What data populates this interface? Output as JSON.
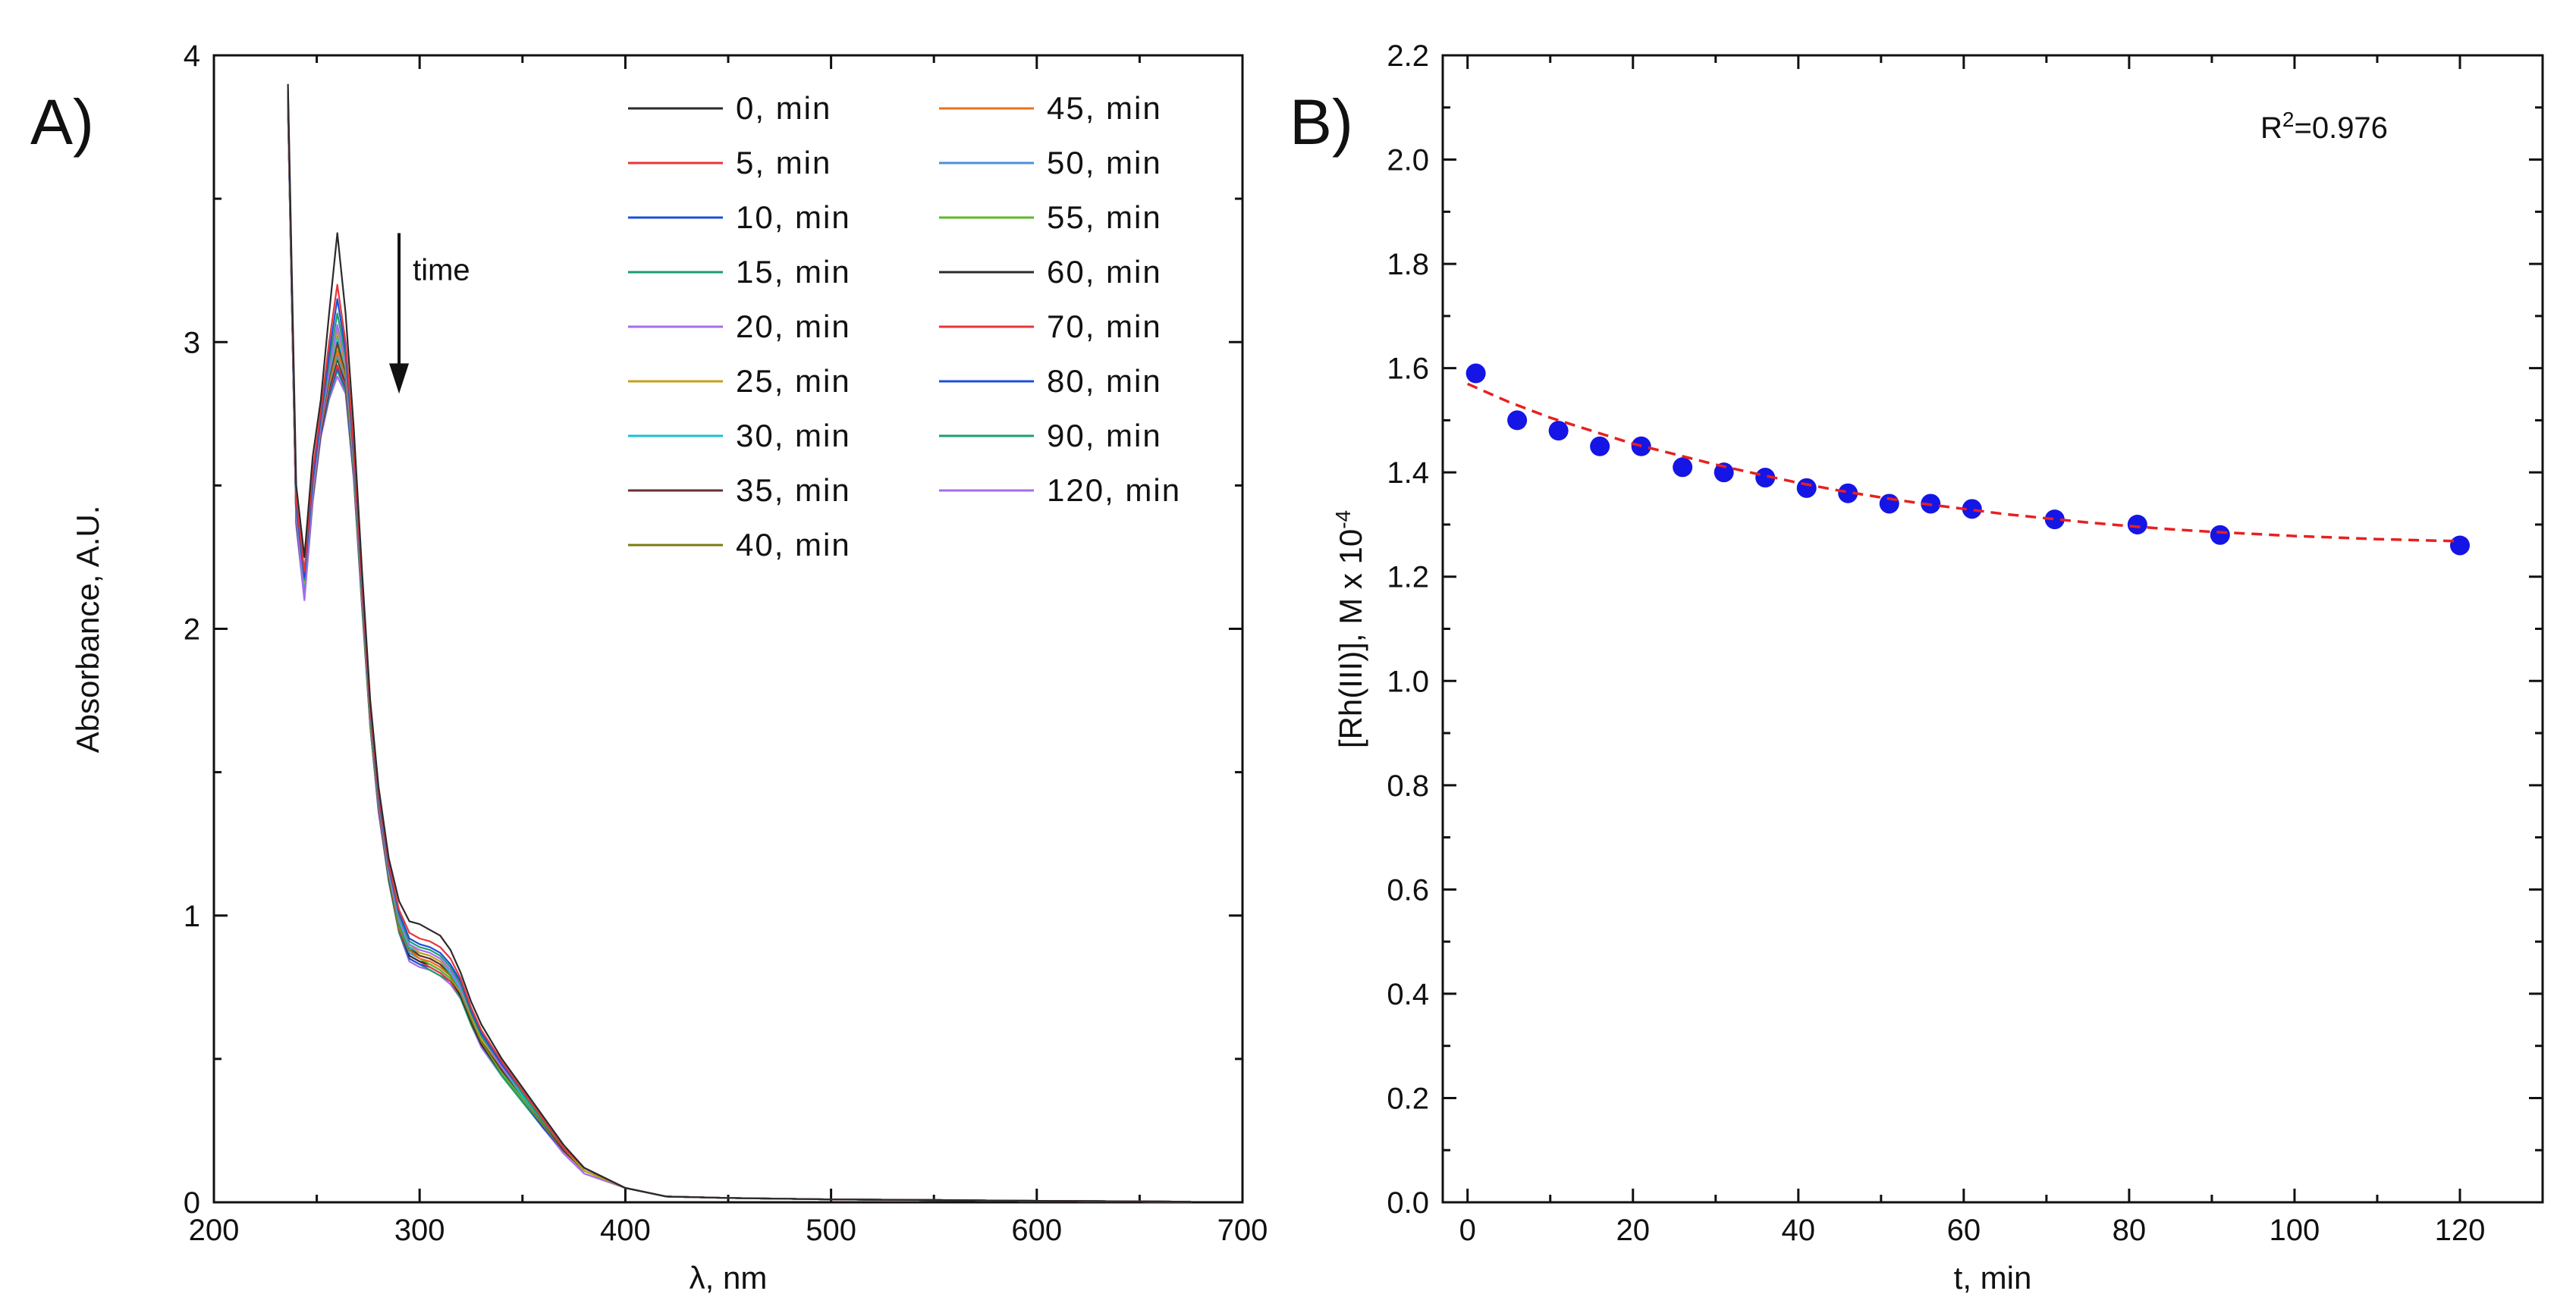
{
  "chart_data": [
    {
      "type": "line",
      "panel_label": "A)",
      "xlabel": "λ, nm",
      "ylabel": "Absorbance, A.U.",
      "xlim": [
        200,
        700
      ],
      "ylim": [
        0,
        4
      ],
      "x_ticks": [
        200,
        300,
        400,
        500,
        600,
        700
      ],
      "y_ticks": [
        0,
        1,
        2,
        3,
        4
      ],
      "annotation": "time",
      "arrow": {
        "x": 290,
        "y_from": 3.38,
        "y_to": 2.82
      },
      "grid": false,
      "legend_position": "top-right",
      "x": [
        236,
        240,
        244,
        248,
        252,
        256,
        260,
        264,
        268,
        272,
        276,
        280,
        285,
        290,
        295,
        300,
        305,
        310,
        315,
        320,
        325,
        330,
        340,
        350,
        360,
        370,
        380,
        400,
        420,
        450,
        500,
        550,
        600,
        650,
        675
      ],
      "series": [
        {
          "name": "0, min",
          "color": "#2b2b2b",
          "values": [
            3.9,
            2.5,
            2.25,
            2.6,
            2.8,
            3.1,
            3.38,
            3.1,
            2.7,
            2.2,
            1.75,
            1.45,
            1.2,
            1.05,
            0.98,
            0.97,
            0.95,
            0.93,
            0.88,
            0.8,
            0.7,
            0.62,
            0.5,
            0.4,
            0.3,
            0.2,
            0.12,
            0.05,
            0.02,
            0.015,
            0.01,
            0.008,
            0.005,
            0.003,
            0.002
          ]
        },
        {
          "name": "5, min",
          "color": "#e8363a",
          "values": [
            3.88,
            2.45,
            2.2,
            2.55,
            2.76,
            3.0,
            3.2,
            3.0,
            2.63,
            2.15,
            1.72,
            1.43,
            1.18,
            1.02,
            0.94,
            0.92,
            0.91,
            0.89,
            0.85,
            0.78,
            0.68,
            0.6,
            0.49,
            0.39,
            0.29,
            0.19,
            0.12,
            0.05,
            0.02,
            0.015,
            0.01,
            0.008,
            0.005,
            0.003,
            0.002
          ]
        },
        {
          "name": "10, min",
          "color": "#1e4fd8",
          "values": [
            3.87,
            2.43,
            2.18,
            2.52,
            2.74,
            2.96,
            3.15,
            2.97,
            2.61,
            2.14,
            1.71,
            1.42,
            1.17,
            1.01,
            0.92,
            0.9,
            0.89,
            0.87,
            0.83,
            0.77,
            0.67,
            0.59,
            0.48,
            0.39,
            0.29,
            0.19,
            0.12,
            0.05,
            0.02,
            0.015,
            0.01,
            0.008,
            0.005,
            0.003,
            0.002
          ]
        },
        {
          "name": "15, min",
          "color": "#1a9e6e",
          "values": [
            3.86,
            2.42,
            2.17,
            2.51,
            2.73,
            2.93,
            3.1,
            2.95,
            2.6,
            2.13,
            1.7,
            1.41,
            1.17,
            1.0,
            0.91,
            0.89,
            0.88,
            0.86,
            0.82,
            0.76,
            0.66,
            0.58,
            0.48,
            0.38,
            0.28,
            0.19,
            0.12,
            0.05,
            0.02,
            0.015,
            0.01,
            0.008,
            0.005,
            0.003,
            0.002
          ]
        },
        {
          "name": "20, min",
          "color": "#a46cf0",
          "values": [
            3.85,
            2.4,
            2.1,
            2.48,
            2.71,
            2.9,
            3.06,
            2.93,
            2.59,
            2.12,
            1.7,
            1.4,
            1.16,
            0.99,
            0.9,
            0.88,
            0.87,
            0.85,
            0.81,
            0.75,
            0.66,
            0.58,
            0.47,
            0.38,
            0.28,
            0.19,
            0.12,
            0.05,
            0.02,
            0.015,
            0.01,
            0.008,
            0.005,
            0.003,
            0.002
          ]
        },
        {
          "name": "25, min",
          "color": "#c7a018",
          "values": [
            3.85,
            2.41,
            2.16,
            2.5,
            2.72,
            2.9,
            3.04,
            2.92,
            2.58,
            2.12,
            1.69,
            1.4,
            1.16,
            0.99,
            0.9,
            0.87,
            0.86,
            0.84,
            0.81,
            0.75,
            0.65,
            0.57,
            0.47,
            0.38,
            0.28,
            0.19,
            0.11,
            0.05,
            0.02,
            0.015,
            0.01,
            0.008,
            0.005,
            0.003,
            0.002
          ]
        },
        {
          "name": "30, min",
          "color": "#19c1d6",
          "values": [
            3.85,
            2.41,
            2.15,
            2.5,
            2.72,
            2.89,
            3.02,
            2.91,
            2.57,
            2.11,
            1.69,
            1.4,
            1.15,
            0.98,
            0.89,
            0.87,
            0.86,
            0.84,
            0.8,
            0.74,
            0.65,
            0.57,
            0.47,
            0.37,
            0.28,
            0.19,
            0.11,
            0.05,
            0.02,
            0.015,
            0.01,
            0.008,
            0.005,
            0.003,
            0.002
          ]
        },
        {
          "name": "35, min",
          "color": "#6b2f2f",
          "values": [
            3.84,
            2.4,
            2.15,
            2.49,
            2.71,
            2.88,
            3.0,
            2.9,
            2.57,
            2.11,
            1.69,
            1.39,
            1.15,
            0.98,
            0.89,
            0.86,
            0.85,
            0.83,
            0.8,
            0.74,
            0.65,
            0.57,
            0.46,
            0.37,
            0.28,
            0.18,
            0.11,
            0.05,
            0.02,
            0.015,
            0.01,
            0.008,
            0.005,
            0.003,
            0.002
          ]
        },
        {
          "name": "40, min",
          "color": "#7d7a12",
          "values": [
            3.84,
            2.4,
            2.14,
            2.49,
            2.71,
            2.87,
            2.99,
            2.89,
            2.56,
            2.1,
            1.68,
            1.39,
            1.15,
            0.97,
            0.88,
            0.86,
            0.85,
            0.83,
            0.79,
            0.74,
            0.64,
            0.56,
            0.46,
            0.37,
            0.27,
            0.18,
            0.11,
            0.05,
            0.02,
            0.015,
            0.01,
            0.008,
            0.005,
            0.003,
            0.002
          ]
        },
        {
          "name": "45, min",
          "color": "#f07018",
          "values": [
            3.84,
            2.39,
            2.14,
            2.48,
            2.7,
            2.86,
            2.97,
            2.88,
            2.56,
            2.1,
            1.68,
            1.39,
            1.14,
            0.97,
            0.88,
            0.85,
            0.84,
            0.82,
            0.79,
            0.73,
            0.64,
            0.56,
            0.46,
            0.37,
            0.27,
            0.18,
            0.11,
            0.05,
            0.02,
            0.015,
            0.01,
            0.008,
            0.005,
            0.003,
            0.002
          ]
        },
        {
          "name": "50, min",
          "color": "#4a8ee0",
          "values": [
            3.83,
            2.39,
            2.13,
            2.48,
            2.7,
            2.85,
            2.96,
            2.87,
            2.55,
            2.1,
            1.68,
            1.38,
            1.14,
            0.97,
            0.87,
            0.85,
            0.84,
            0.82,
            0.79,
            0.73,
            0.64,
            0.56,
            0.46,
            0.37,
            0.27,
            0.18,
            0.11,
            0.05,
            0.02,
            0.015,
            0.01,
            0.008,
            0.005,
            0.003,
            0.002
          ]
        },
        {
          "name": "55, min",
          "color": "#5cb82a",
          "values": [
            3.83,
            2.39,
            2.13,
            2.47,
            2.7,
            2.85,
            2.95,
            2.87,
            2.55,
            2.09,
            1.67,
            1.38,
            1.14,
            0.96,
            0.87,
            0.85,
            0.83,
            0.81,
            0.78,
            0.73,
            0.64,
            0.56,
            0.45,
            0.36,
            0.27,
            0.18,
            0.11,
            0.05,
            0.02,
            0.015,
            0.01,
            0.008,
            0.005,
            0.003,
            0.002
          ]
        },
        {
          "name": "60, min",
          "color": "#2b2b2b",
          "values": [
            3.83,
            2.38,
            2.13,
            2.47,
            2.69,
            2.84,
            2.94,
            2.86,
            2.54,
            2.09,
            1.67,
            1.38,
            1.13,
            0.96,
            0.86,
            0.84,
            0.83,
            0.81,
            0.78,
            0.72,
            0.63,
            0.55,
            0.45,
            0.36,
            0.27,
            0.18,
            0.11,
            0.05,
            0.02,
            0.015,
            0.01,
            0.008,
            0.005,
            0.003,
            0.002
          ]
        },
        {
          "name": "70, min",
          "color": "#e8363a",
          "values": [
            3.82,
            2.38,
            2.12,
            2.46,
            2.69,
            2.83,
            2.92,
            2.85,
            2.54,
            2.09,
            1.67,
            1.37,
            1.13,
            0.95,
            0.86,
            0.84,
            0.82,
            0.8,
            0.77,
            0.72,
            0.63,
            0.55,
            0.45,
            0.36,
            0.27,
            0.18,
            0.11,
            0.05,
            0.02,
            0.015,
            0.01,
            0.008,
            0.005,
            0.003,
            0.002
          ]
        },
        {
          "name": "80, min",
          "color": "#1e4fd8",
          "values": [
            3.82,
            2.37,
            2.12,
            2.46,
            2.68,
            2.82,
            2.91,
            2.84,
            2.53,
            2.08,
            1.66,
            1.37,
            1.13,
            0.95,
            0.85,
            0.83,
            0.82,
            0.8,
            0.77,
            0.72,
            0.63,
            0.55,
            0.45,
            0.36,
            0.26,
            0.18,
            0.11,
            0.05,
            0.02,
            0.015,
            0.01,
            0.008,
            0.005,
            0.003,
            0.002
          ]
        },
        {
          "name": "90, min",
          "color": "#1a9e6e",
          "values": [
            3.82,
            2.37,
            2.11,
            2.45,
            2.68,
            2.81,
            2.9,
            2.83,
            2.53,
            2.08,
            1.66,
            1.37,
            1.12,
            0.94,
            0.85,
            0.83,
            0.81,
            0.79,
            0.77,
            0.71,
            0.62,
            0.55,
            0.44,
            0.35,
            0.26,
            0.18,
            0.11,
            0.05,
            0.02,
            0.015,
            0.01,
            0.008,
            0.005,
            0.003,
            0.002
          ]
        },
        {
          "name": "120, min",
          "color": "#a46cf0",
          "values": [
            3.81,
            2.36,
            2.1,
            2.44,
            2.67,
            2.8,
            2.88,
            2.82,
            2.52,
            2.07,
            1.66,
            1.36,
            1.12,
            0.94,
            0.84,
            0.82,
            0.81,
            0.79,
            0.76,
            0.71,
            0.62,
            0.54,
            0.44,
            0.35,
            0.26,
            0.17,
            0.1,
            0.05,
            0.02,
            0.015,
            0.01,
            0.008,
            0.005,
            0.003,
            0.002
          ]
        }
      ]
    },
    {
      "type": "scatter",
      "panel_label": "B)",
      "xlabel": "t, min",
      "ylabel": "[Rh(III)], M x 10",
      "ylabel_exponent": "-4",
      "xlim": [
        -3,
        130
      ],
      "ylim": [
        0.0,
        2.2
      ],
      "x_ticks": [
        0,
        20,
        40,
        60,
        80,
        100,
        120
      ],
      "y_ticks": [
        "0.0",
        "0.2",
        "0.4",
        "0.6",
        "0.8",
        "1.0",
        "1.2",
        "1.4",
        "1.6",
        "1.8",
        "2.0",
        "2.2"
      ],
      "annotation": {
        "base": "R",
        "sup": "2",
        "rest": "=0.976"
      },
      "grid": false,
      "series": [
        {
          "name": "data",
          "color": "#1515e6",
          "x": [
            1,
            6,
            11,
            16,
            21,
            26,
            31,
            36,
            41,
            46,
            51,
            56,
            61,
            71,
            81,
            91,
            120
          ],
          "values": [
            1.59,
            1.5,
            1.48,
            1.45,
            1.45,
            1.41,
            1.4,
            1.39,
            1.37,
            1.36,
            1.34,
            1.34,
            1.33,
            1.31,
            1.3,
            1.28,
            1.26
          ]
        },
        {
          "name": "fit",
          "color": "#e82020",
          "style": "dashed",
          "x": [
            0,
            5,
            10,
            15,
            20,
            25,
            30,
            35,
            40,
            45,
            50,
            55,
            60,
            65,
            70,
            75,
            80,
            85,
            90,
            95,
            100,
            105,
            110,
            115,
            120
          ],
          "values": [
            1.57,
            1.535,
            1.505,
            1.48,
            1.455,
            1.435,
            1.415,
            1.397,
            1.38,
            1.365,
            1.352,
            1.34,
            1.33,
            1.32,
            1.312,
            1.304,
            1.297,
            1.291,
            1.286,
            1.282,
            1.278,
            1.275,
            1.272,
            1.27,
            1.268
          ]
        }
      ]
    }
  ]
}
